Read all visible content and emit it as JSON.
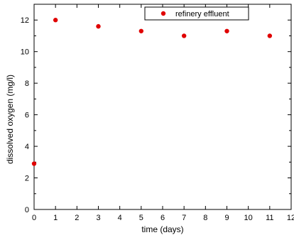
{
  "chart_data": {
    "type": "scatter",
    "title": "",
    "xlabel": "time (days)",
    "ylabel": "dissolved oxygen (mg/l)",
    "xlim": [
      0,
      12
    ],
    "ylim": [
      0,
      13
    ],
    "xticks": [
      0,
      1,
      2,
      3,
      4,
      5,
      6,
      7,
      8,
      9,
      10,
      11,
      12
    ],
    "yticks": [
      0,
      2,
      4,
      6,
      8,
      10,
      12
    ],
    "grid": false,
    "legend_position": "top-right",
    "series": [
      {
        "name": "refinery effluent",
        "color": "#e00000",
        "marker": "circle",
        "points": [
          {
            "x": 0,
            "y": 2.9
          },
          {
            "x": 1,
            "y": 12.0
          },
          {
            "x": 3,
            "y": 11.6
          },
          {
            "x": 5,
            "y": 11.3
          },
          {
            "x": 7,
            "y": 11.0
          },
          {
            "x": 9,
            "y": 11.3
          },
          {
            "x": 11,
            "y": 11.0
          }
        ]
      }
    ]
  }
}
